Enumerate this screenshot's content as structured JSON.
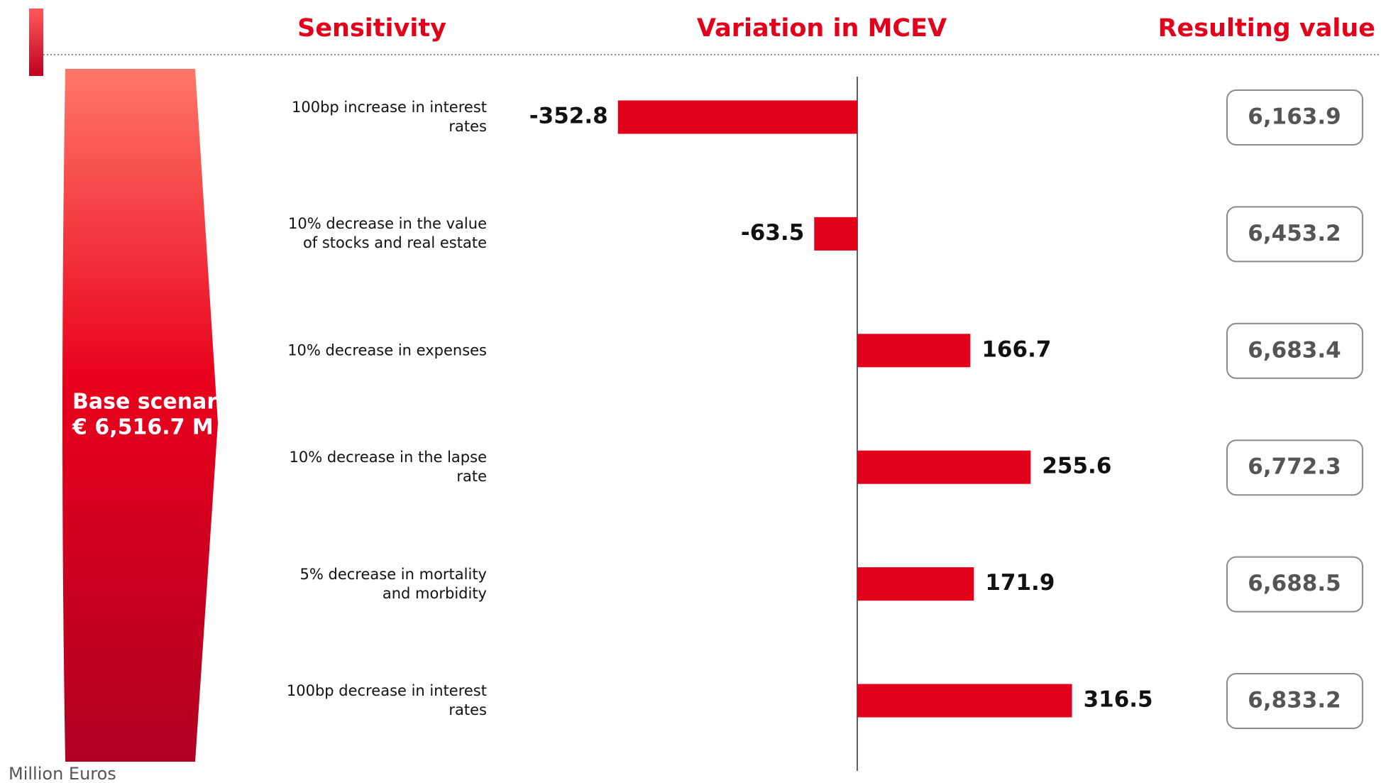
{
  "chart_data": {
    "type": "bar",
    "orientation": "horizontal",
    "headers": [
      "Sensitivity",
      "Variation in MCEV",
      "Resulting value"
    ],
    "base_label": "Base scenario",
    "base_value_label": "€ 6,516.7 M",
    "categories": [
      "100bp increase in interest rates",
      "10% decrease in the value of stocks and real estate",
      "10% decrease in expenses",
      "10% decrease in the lapse rate",
      "5% decrease in mortality and morbidity",
      "100bp decrease in interest rates"
    ],
    "values": [
      -352.8,
      -63.5,
      166.7,
      255.6,
      171.9,
      316.5
    ],
    "resulting_values": [
      "6,163.9",
      "6,453.2",
      "6,683.4",
      "6,772.3",
      "6,688.5",
      "6,833.2"
    ],
    "color": "#e2001a",
    "xlim": [
      -500,
      500
    ],
    "footnote": "Million Euros"
  }
}
